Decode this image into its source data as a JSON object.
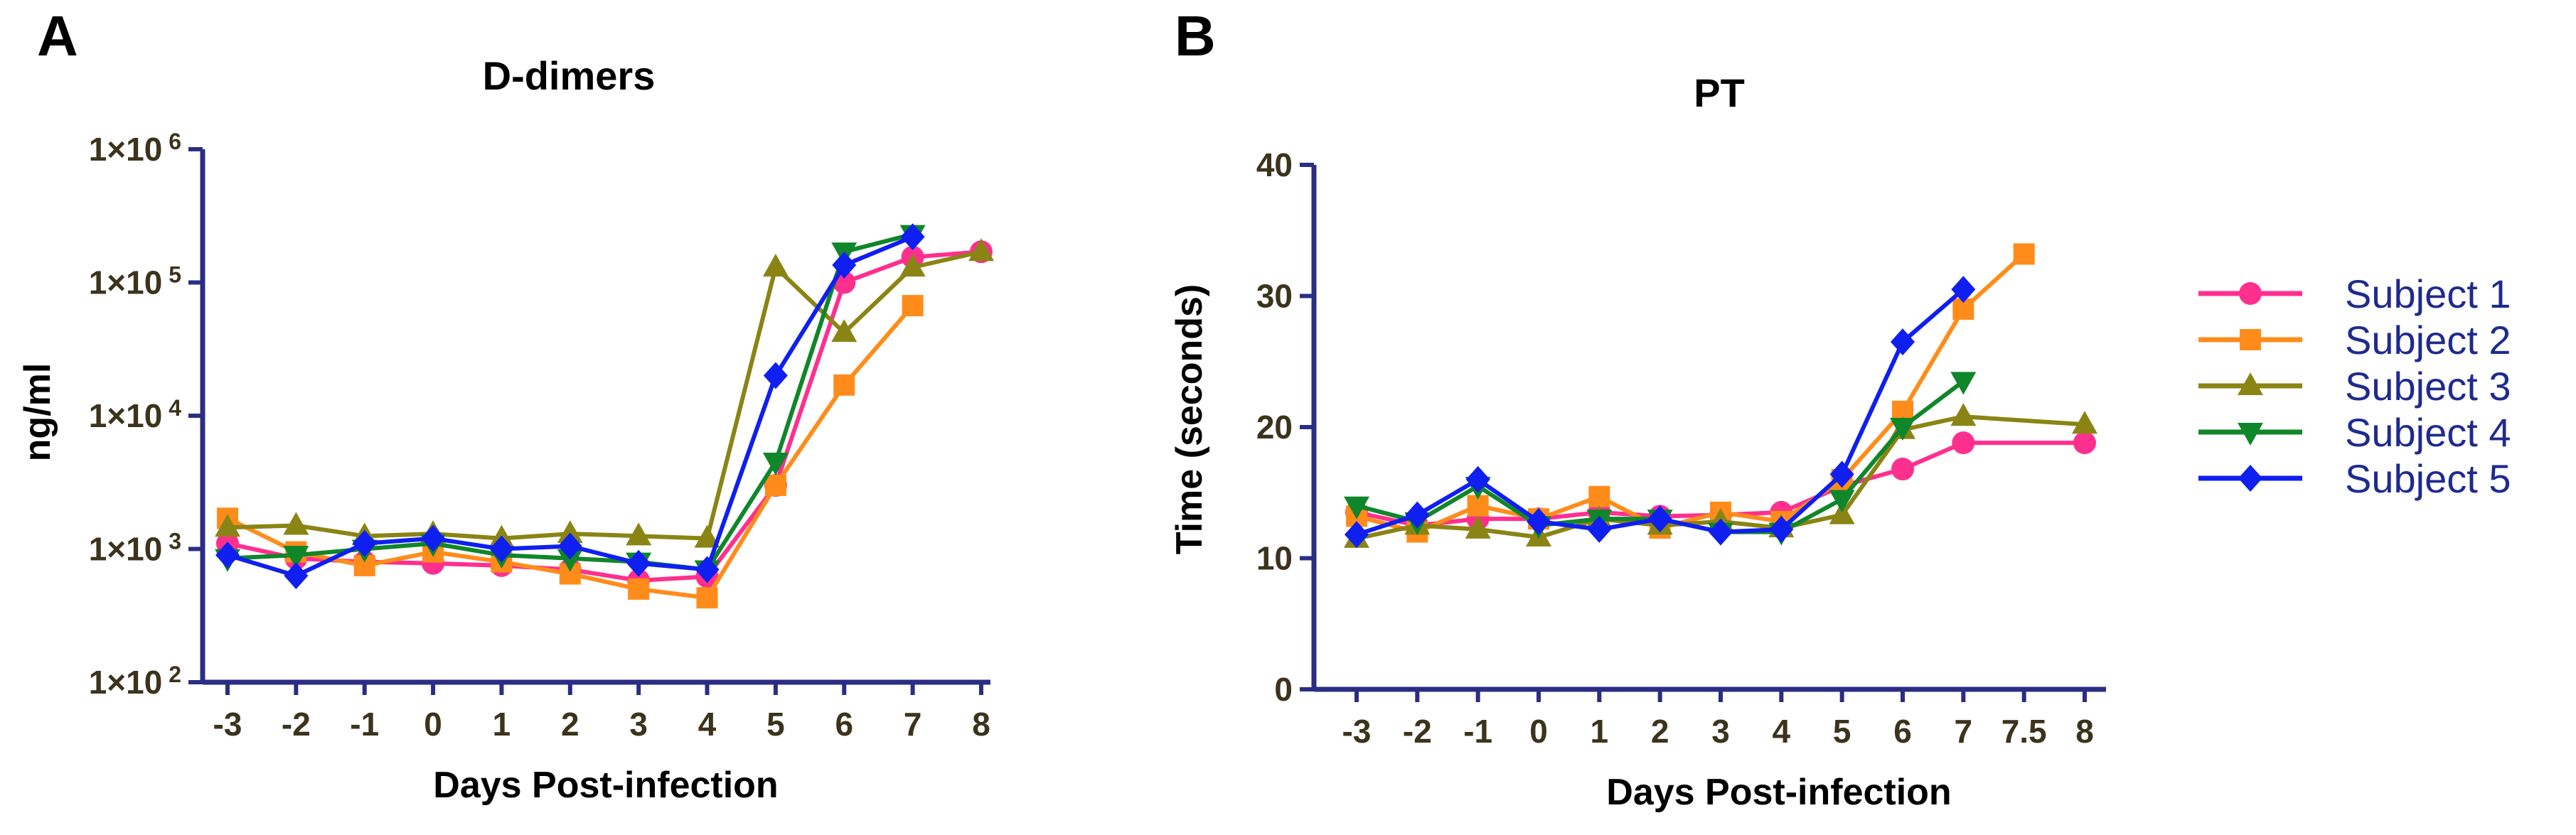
{
  "colors": {
    "axis": "#2b2d84",
    "tick_text": "#3b331c",
    "legend_text": "#1f2a8f"
  },
  "legend": [
    {
      "name": "Subject 1",
      "color": "#ff2f8e",
      "marker": "circle"
    },
    {
      "name": "Subject 2",
      "color": "#ff8c1a",
      "marker": "square"
    },
    {
      "name": "Subject 3",
      "color": "#8a8414",
      "marker": "triangle-up"
    },
    {
      "name": "Subject 4",
      "color": "#10862a",
      "marker": "triangle-down"
    },
    {
      "name": "Subject 5",
      "color": "#0f1ff0",
      "marker": "diamond"
    }
  ],
  "chart_data": [
    {
      "panel": "A",
      "type": "line",
      "title": "D-dimers",
      "xlabel": "Days Post-infection",
      "ylabel": "ng/ml",
      "yscale": "log",
      "ylim": [
        100,
        1000000
      ],
      "y_tick_values": [
        100,
        1000,
        10000,
        100000,
        1000000
      ],
      "y_tick_mantissa": "1×10",
      "y_tick_exponents": [
        "2",
        "3",
        "4",
        "5",
        "6"
      ],
      "x_tick_labels": [
        "-3",
        "-2",
        "-1",
        "0",
        "1",
        "2",
        "3",
        "4",
        "5",
        "6",
        "7",
        "8"
      ],
      "x_tick_values": [
        -3,
        -2,
        -1,
        0,
        1,
        2,
        3,
        4,
        5,
        6,
        7,
        8
      ],
      "series": [
        {
          "name": "Subject 1",
          "x": [
            -3,
            -2,
            -1,
            0,
            1,
            2,
            3,
            4,
            5,
            6,
            7,
            8
          ],
          "y": [
            1100,
            850,
            800,
            780,
            750,
            700,
            580,
            620,
            3000,
            100000,
            155000,
            170000
          ]
        },
        {
          "name": "Subject 2",
          "x": [
            -3,
            -2,
            -1,
            0,
            1,
            2,
            3,
            4,
            5,
            6,
            7
          ],
          "y": [
            1700,
            950,
            750,
            950,
            800,
            650,
            500,
            430,
            3000,
            17000,
            67000
          ]
        },
        {
          "name": "Subject 3",
          "x": [
            -3,
            -2,
            -1,
            0,
            1,
            2,
            3,
            4,
            5,
            6,
            7,
            8
          ],
          "y": [
            1450,
            1500,
            1250,
            1300,
            1200,
            1300,
            1250,
            1200,
            130000,
            42000,
            130000,
            170000
          ]
        },
        {
          "name": "Subject 4",
          "x": [
            -3,
            -2,
            -1,
            0,
            1,
            2,
            3,
            4,
            5,
            6,
            7
          ],
          "y": [
            850,
            900,
            1000,
            1100,
            900,
            850,
            800,
            700,
            4500,
            170000,
            230000
          ]
        },
        {
          "name": "Subject 5",
          "x": [
            -3,
            -2,
            -1,
            0,
            1,
            2,
            3,
            4,
            5,
            6,
            7
          ],
          "y": [
            900,
            630,
            1100,
            1200,
            1000,
            1050,
            780,
            700,
            20000,
            135000,
            220000
          ]
        }
      ]
    },
    {
      "panel": "B",
      "type": "line",
      "title": "PT",
      "xlabel": "Days Post-infection",
      "ylabel": "Time (seconds)",
      "yscale": "linear",
      "ylim": [
        0,
        40
      ],
      "y_tick_values": [
        0,
        10,
        20,
        30,
        40
      ],
      "y_tick_labels": [
        "0",
        "10",
        "20",
        "30",
        "40"
      ],
      "x_tick_labels": [
        "-3",
        "-2",
        "-1",
        "0",
        "1",
        "2",
        "3",
        "4",
        "5",
        "6",
        "7",
        "7.5",
        "8"
      ],
      "x_tick_values": [
        -3,
        -2,
        -1,
        0,
        1,
        2,
        3,
        4,
        5,
        6,
        7,
        7.5,
        8
      ],
      "series": [
        {
          "name": "Subject 1",
          "x": [
            -3,
            -2,
            -1,
            0,
            1,
            2,
            3,
            4,
            5,
            6,
            7,
            8
          ],
          "y": [
            13.5,
            12.5,
            13.0,
            13.0,
            13.5,
            13.2,
            13.3,
            13.5,
            15.5,
            16.8,
            18.8,
            18.8
          ]
        },
        {
          "name": "Subject 2",
          "x": [
            -3,
            -2,
            -1,
            0,
            1,
            2,
            3,
            4,
            5,
            6,
            7,
            7.5
          ],
          "y": [
            13.2,
            12.0,
            14.0,
            13.0,
            14.7,
            12.3,
            13.5,
            12.8,
            16.0,
            21.2,
            29.0,
            33.2
          ]
        },
        {
          "name": "Subject 3",
          "x": [
            -3,
            -2,
            -1,
            0,
            1,
            2,
            3,
            4,
            5,
            6,
            7,
            8
          ],
          "y": [
            11.5,
            12.5,
            12.2,
            11.6,
            13.0,
            12.5,
            12.8,
            12.3,
            13.3,
            19.8,
            20.8,
            20.2
          ]
        },
        {
          "name": "Subject 4",
          "x": [
            -3,
            -2,
            -1,
            0,
            1,
            2,
            3,
            4,
            5,
            6,
            7
          ],
          "y": [
            14.0,
            12.8,
            15.5,
            12.5,
            13.0,
            13.0,
            12.0,
            12.0,
            14.5,
            20.0,
            23.5
          ]
        },
        {
          "name": "Subject 5",
          "x": [
            -3,
            -2,
            -1,
            0,
            1,
            2,
            3,
            4,
            5,
            6,
            7
          ],
          "y": [
            11.8,
            13.3,
            16.0,
            12.8,
            12.2,
            13.0,
            12.0,
            12.2,
            16.4,
            26.5,
            30.5
          ]
        }
      ]
    }
  ]
}
